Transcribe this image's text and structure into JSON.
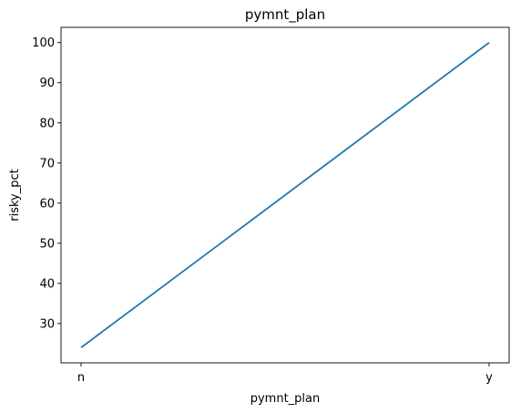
{
  "chart_data": {
    "type": "line",
    "title": "pymnt_plan",
    "xlabel": "pymnt_plan",
    "ylabel": "risky_pct",
    "categories": [
      "n",
      "y"
    ],
    "series": [
      {
        "values": [
          24,
          100
        ],
        "color": "#1f77b4"
      }
    ],
    "ylim": [
      20.2,
      103.8
    ],
    "yticks": [
      30,
      40,
      50,
      60,
      70,
      80,
      90,
      100
    ],
    "grid": false,
    "legend": "none"
  }
}
